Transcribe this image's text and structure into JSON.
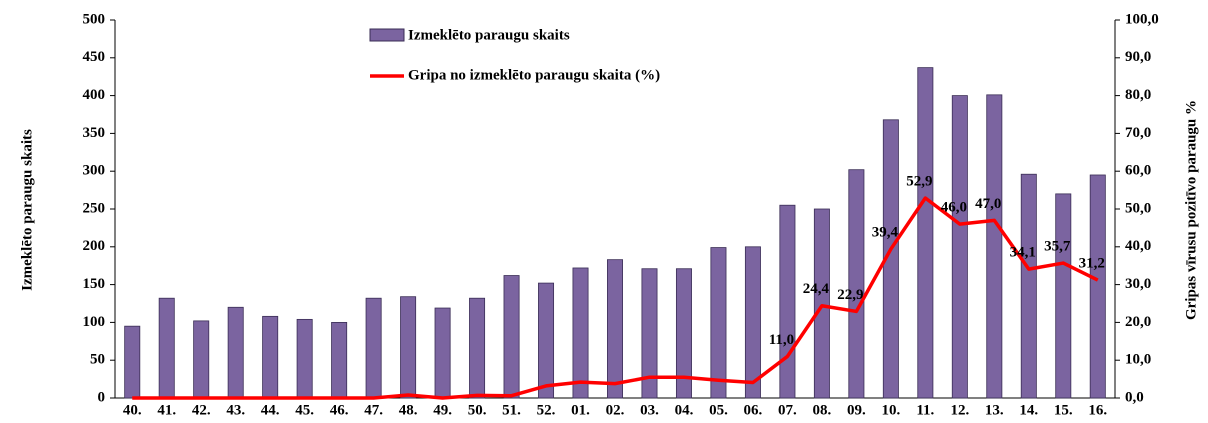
{
  "chart_data": {
    "type": "bar_line",
    "categories": [
      "40.",
      "41.",
      "42.",
      "43.",
      "44.",
      "45.",
      "46.",
      "47.",
      "48.",
      "49.",
      "50.",
      "51.",
      "52.",
      "01.",
      "02.",
      "03.",
      "04.",
      "05.",
      "06.",
      "07.",
      "08.",
      "09.",
      "10.",
      "11.",
      "12.",
      "13.",
      "14.",
      "15.",
      "16."
    ],
    "series": [
      {
        "name": "Izmeklēto paraugu skaits",
        "type": "bar",
        "color": "#7b64a0",
        "values": [
          95,
          132,
          102,
          120,
          108,
          104,
          100,
          132,
          134,
          119,
          132,
          162,
          152,
          172,
          183,
          171,
          171,
          199,
          200,
          255,
          250,
          302,
          368,
          437,
          400,
          401,
          296,
          270,
          295
        ]
      },
      {
        "name": "Gripa no izmeklēto paraugu skaita (%)",
        "type": "line",
        "axis": "y2",
        "color": "#ff0000",
        "values": [
          0,
          0,
          0,
          0,
          0,
          0,
          0,
          0,
          0.8,
          0,
          0.7,
          0.6,
          3.2,
          4.2,
          3.8,
          5.5,
          5.5,
          4.7,
          4.1,
          11.0,
          24.4,
          22.9,
          39.4,
          52.9,
          46.0,
          47.0,
          34.1,
          35.7,
          31.2
        ],
        "value_labels": [
          null,
          null,
          null,
          null,
          null,
          null,
          null,
          null,
          null,
          null,
          null,
          null,
          null,
          null,
          null,
          null,
          null,
          null,
          null,
          "11,0",
          "24,4",
          "22,9",
          "39,4",
          "52,9",
          "46,0",
          "47,0",
          "34,1",
          "35,7",
          "31,2"
        ]
      }
    ],
    "ylabel": "Izmeklēto paraugu skaits",
    "y2label": "Gripas vīrusu pozitīvo paraugu %",
    "ylim": [
      0,
      500
    ],
    "yticks": [
      0,
      50,
      100,
      150,
      200,
      250,
      300,
      350,
      400,
      450,
      500
    ],
    "y2lim": [
      0,
      100
    ],
    "y2ticks": [
      {
        "value": 0,
        "label": "0,0"
      },
      {
        "value": 10,
        "label": "10,0"
      },
      {
        "value": 20,
        "label": "20,0"
      },
      {
        "value": 30,
        "label": "30,0"
      },
      {
        "value": 40,
        "label": "40,0"
      },
      {
        "value": 50,
        "label": "50,0"
      },
      {
        "value": 60,
        "label": "60,0"
      },
      {
        "value": 70,
        "label": "70,0"
      },
      {
        "value": 80,
        "label": "80,0"
      },
      {
        "value": 90,
        "label": "90,0"
      },
      {
        "value": 100,
        "label": "100,0"
      }
    ]
  }
}
